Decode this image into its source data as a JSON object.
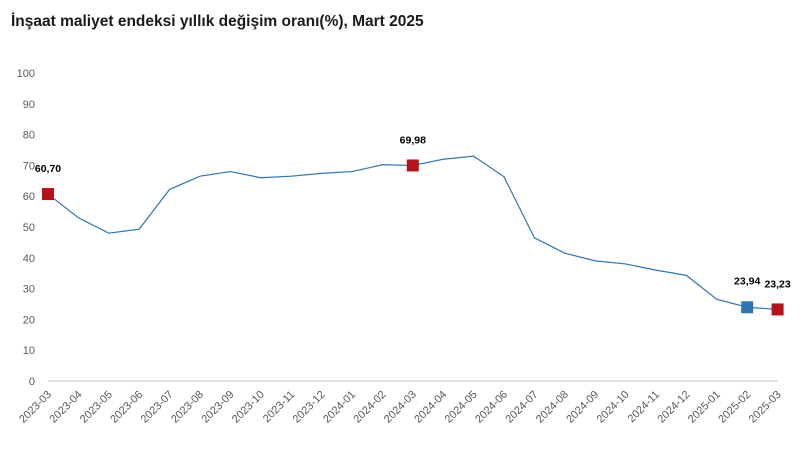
{
  "title": "İnşaat maliyet endeksi yıllık değişim oranı(%), Mart 2025",
  "colors": {
    "line": "#2e75b6",
    "highlight_red": "#b5121b",
    "highlight_blue": "#2e75b6",
    "axis": "#bfbfbf"
  },
  "chart_data": {
    "type": "line",
    "title": "İnşaat maliyet endeksi yıllık değişim oranı(%), Mart 2025",
    "xlabel": "",
    "ylabel": "",
    "ylim": [
      0,
      100
    ],
    "yticks": [
      "0",
      "10",
      "20",
      "30",
      "40",
      "50",
      "60",
      "70",
      "80",
      "90",
      "100"
    ],
    "grid": false,
    "legend": "none",
    "categories": [
      "2023-03",
      "2023-04",
      "2023-05",
      "2023-06",
      "2023-07",
      "2023-08",
      "2023-09",
      "2023-10",
      "2023-11",
      "2023-12",
      "2024-01",
      "2024-02",
      "2024-03",
      "2024-04",
      "2024-05",
      "2024-06",
      "2024-07",
      "2024-08",
      "2024-09",
      "2024-10",
      "2024-11",
      "2024-12",
      "2025-01",
      "2025-02",
      "2025-03"
    ],
    "series": [
      {
        "values": [
          60.7,
          53.0,
          48.0,
          49.3,
          62.2,
          66.5,
          68.0,
          66.0,
          66.5,
          67.4,
          68.0,
          70.2,
          69.98,
          72.0,
          73.0,
          66.3,
          46.5,
          41.5,
          39.0,
          38.0,
          36.0,
          34.3,
          26.5,
          23.94,
          23.23
        ]
      }
    ],
    "annotations": [
      {
        "category": "2023-03",
        "value": 60.7,
        "label": "60,70",
        "marker_color": "#b5121b"
      },
      {
        "category": "2024-03",
        "value": 69.98,
        "label": "69,98",
        "marker_color": "#b5121b"
      },
      {
        "category": "2025-02",
        "value": 23.94,
        "label": "23,94",
        "marker_color": "#2e75b6"
      },
      {
        "category": "2025-03",
        "value": 23.23,
        "label": "23,23",
        "marker_color": "#b5121b"
      }
    ]
  }
}
